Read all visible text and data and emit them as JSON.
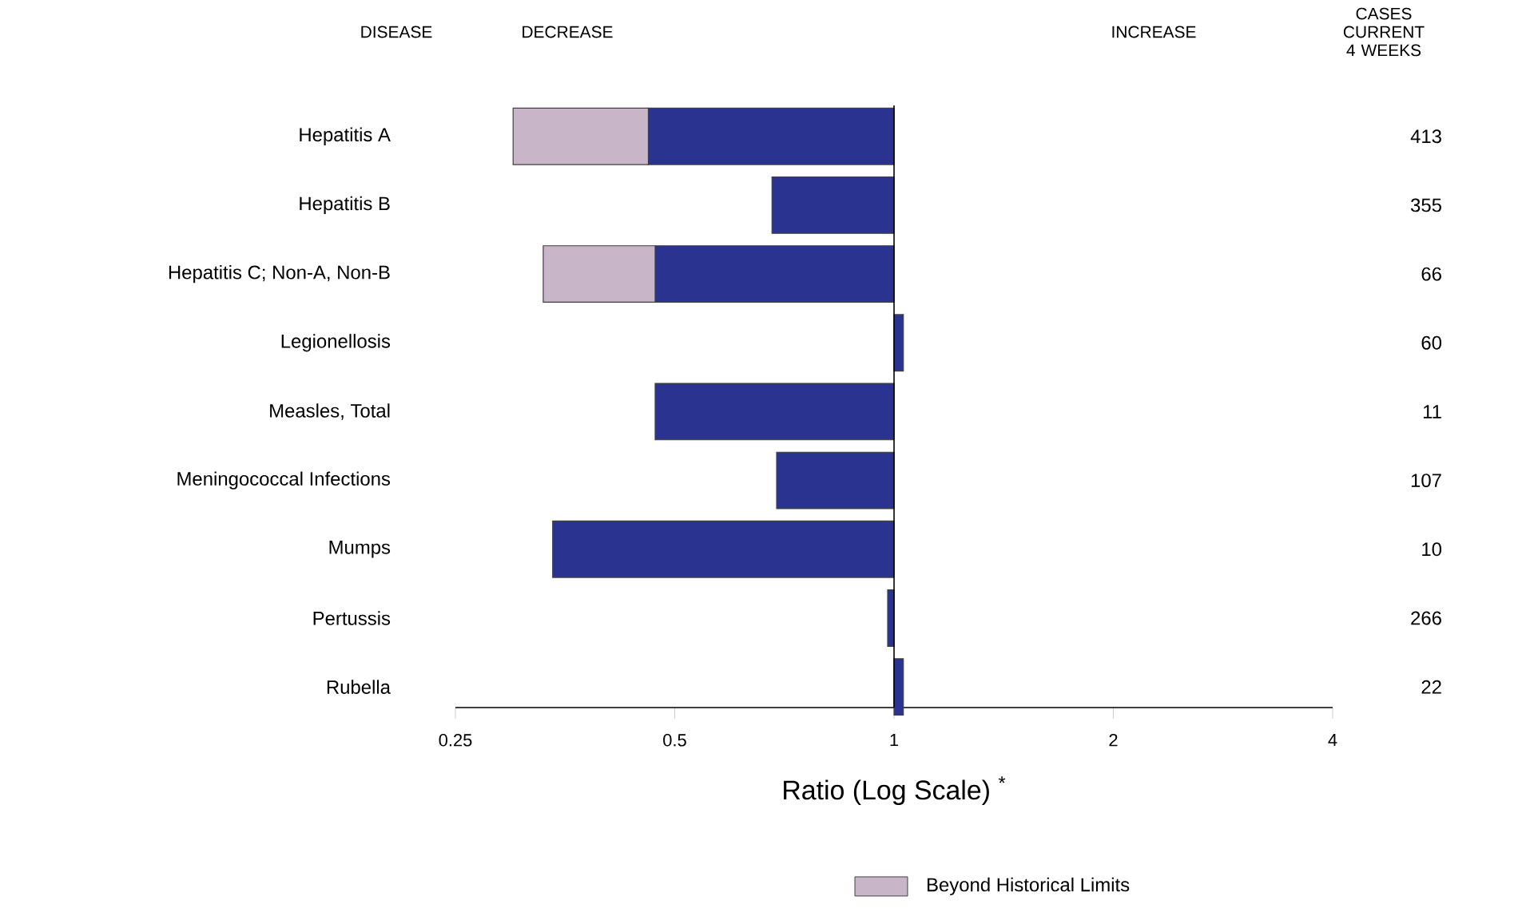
{
  "chart_data": {
    "type": "bar",
    "orientation": "horizontal",
    "log": "x",
    "categories": [
      "Hepatitis A",
      "Hepatitis B",
      "Hepatitis C; Non-A, Non-B",
      "Legionellosis",
      "Measles, Total",
      "Meningococcal Infections",
      "Mumps",
      "Pertussis",
      "Rubella"
    ],
    "series": [
      {
        "color": "#2b3391",
        "base": [
          1,
          1,
          1,
          1,
          1,
          1,
          1,
          1,
          1
        ],
        "values": [
          -0.54,
          -0.32,
          -0.53,
          0.03,
          -0.53,
          -0.31,
          -0.66,
          -0.02,
          0.03
        ]
      },
      {
        "name": "Beyond Historical Limits",
        "color": "#c8b6c8",
        "base": [
          0.46,
          null,
          0.47,
          null,
          null,
          null,
          null,
          null,
          null
        ],
        "values": [
          -0.16,
          null,
          -0.14,
          null,
          null,
          null,
          null,
          null,
          null
        ]
      }
    ],
    "xlim": [
      0.25,
      4
    ],
    "xticks": [
      0.25,
      0.5,
      1,
      2,
      4
    ],
    "xlabel": "Ratio (Log Scale) $^{*}$",
    "ref_lines": [
      {
        "axis": "x",
        "value": 1
      }
    ],
    "legend": "bottom",
    "annotations": [
      "DISEASE",
      "DECREASE",
      "INCREASE",
      "CASES CURRENT 4 WEEKS",
      "413",
      "355",
      "66",
      "60",
      "11",
      "107",
      "10",
      "266",
      "22"
    ]
  }
}
